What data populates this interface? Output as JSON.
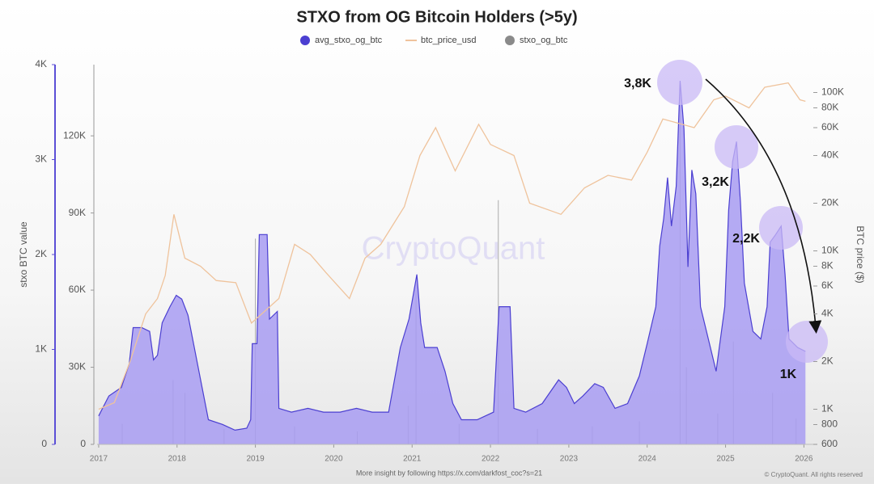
{
  "chart_data": {
    "type": "area",
    "title": "STXO from OG Bitcoin Holders (>5y)",
    "ylabel": "stxo BTC value",
    "y2label": "BTC price ($)",
    "watermark": "CryptoQuant",
    "footer": "More insight by following https://x.com/darkfost_coc?s=21",
    "copyright": "© CryptoQuant. All rights reserved",
    "annotations": [
      "3,8K",
      "3,2K",
      "2,2K",
      "1K"
    ],
    "xlim": [
      2016.98,
      2026.12
    ],
    "xticks": [
      2017,
      2018,
      2019,
      2020,
      2021,
      2022,
      2023,
      2024,
      2025,
      2026
    ],
    "ylim": [
      0,
      4000
    ],
    "yticks": [
      0,
      {
        "value": 1000,
        "label": "1K"
      },
      {
        "value": 2000,
        "label": "2K"
      },
      {
        "value": 3000,
        "label": "3K"
      },
      {
        "value": 4000,
        "label": "4K"
      }
    ],
    "y3lim": [
      0,
      147700
    ],
    "y3ticks": [
      0,
      {
        "value": 30000,
        "label": "30K"
      },
      {
        "value": 60000,
        "label": "60K"
      },
      {
        "value": 90000,
        "label": "90K"
      },
      {
        "value": 120000,
        "label": "120K"
      }
    ],
    "y2log": true,
    "y2lim": [
      600,
      150000
    ],
    "y2ticks": [
      600,
      800,
      {
        "value": 1000,
        "label": "1K"
      },
      {
        "value": 2000,
        "label": "2K"
      },
      {
        "value": 4000,
        "label": "4K"
      },
      {
        "value": 6000,
        "label": "6K"
      },
      {
        "value": 8000,
        "label": "8K"
      },
      {
        "value": 10000,
        "label": "10K"
      },
      {
        "value": 20000,
        "label": "20K"
      },
      {
        "value": 40000,
        "label": "40K"
      },
      {
        "value": 60000,
        "label": "60K"
      },
      {
        "value": 80000,
        "label": "80K"
      },
      {
        "value": 100000,
        "label": "100K"
      }
    ],
    "series": [
      {
        "name": "avg_stxo_og_btc",
        "type": "area",
        "color": "#4b3fd1",
        "fill": "#a89cf2",
        "x": [
          2017.0,
          2017.13,
          2017.29,
          2017.39,
          2017.44,
          2017.55,
          2017.65,
          2017.7,
          2017.75,
          2017.81,
          2017.91,
          2017.99,
          2018.06,
          2018.14,
          2018.22,
          2018.32,
          2018.4,
          2018.58,
          2018.74,
          2018.89,
          2018.94,
          2018.96,
          2019.02,
          2019.05,
          2019.15,
          2019.18,
          2019.28,
          2019.3,
          2019.46,
          2019.67,
          2019.87,
          2020.08,
          2020.29,
          2020.49,
          2020.7,
          2020.85,
          2020.96,
          2021.06,
          2021.11,
          2021.16,
          2021.32,
          2021.42,
          2021.52,
          2021.63,
          2021.83,
          2022.04,
          2022.11,
          2022.25,
          2022.3,
          2022.45,
          2022.66,
          2022.87,
          2022.97,
          2023.07,
          2023.18,
          2023.33,
          2023.44,
          2023.59,
          2023.75,
          2023.9,
          2024.0,
          2024.11,
          2024.16,
          2024.21,
          2024.26,
          2024.31,
          2024.37,
          2024.42,
          2024.47,
          2024.52,
          2024.57,
          2024.62,
          2024.68,
          2024.78,
          2024.88,
          2024.99,
          2025.04,
          2025.09,
          2025.14,
          2025.19,
          2025.24,
          2025.35,
          2025.45,
          2025.53,
          2025.57,
          2025.64,
          2025.71,
          2025.76,
          2025.81,
          2025.92,
          2026.02
        ],
        "values": [
          300,
          510,
          600,
          850,
          1230,
          1230,
          1190,
          890,
          940,
          1280,
          1450,
          1570,
          1530,
          1360,
          1020,
          600,
          260,
          210,
          150,
          170,
          260,
          1060,
          1060,
          2210,
          2210,
          1320,
          1400,
          380,
          340,
          380,
          340,
          340,
          380,
          340,
          340,
          1020,
          1320,
          1790,
          1280,
          1020,
          1020,
          770,
          430,
          260,
          260,
          340,
          1450,
          1450,
          380,
          340,
          430,
          680,
          600,
          430,
          510,
          640,
          600,
          380,
          430,
          720,
          1060,
          1450,
          2090,
          2380,
          2810,
          2300,
          2720,
          3830,
          3320,
          1870,
          2890,
          2640,
          1450,
          1110,
          770,
          1450,
          2470,
          2980,
          3190,
          2550,
          1700,
          1190,
          1110,
          1450,
          2130,
          2210,
          2300,
          1790,
          1110,
          1020,
          980
        ]
      },
      {
        "name": "btc_price_usd",
        "type": "line",
        "axis": "y2",
        "color": "#efc39c",
        "x": [
          2017.0,
          2017.2,
          2017.4,
          2017.6,
          2017.75,
          2017.85,
          2017.96,
          2018.1,
          2018.3,
          2018.5,
          2018.75,
          2018.95,
          2019.3,
          2019.5,
          2019.7,
          2019.9,
          2020.2,
          2020.4,
          2020.6,
          2020.9,
          2021.1,
          2021.3,
          2021.55,
          2021.85,
          2022.0,
          2022.3,
          2022.5,
          2022.9,
          2023.2,
          2023.5,
          2023.8,
          2024.0,
          2024.2,
          2024.6,
          2024.85,
          2025.0,
          2025.3,
          2025.5,
          2025.8,
          2025.95,
          2026.02
        ],
        "values": [
          1000,
          1100,
          2000,
          4000,
          5000,
          7000,
          17000,
          9000,
          8000,
          6500,
          6300,
          3500,
          5000,
          11000,
          9500,
          7300,
          5000,
          9000,
          11000,
          19000,
          40000,
          60000,
          32000,
          63000,
          47000,
          40000,
          20000,
          17000,
          25000,
          30000,
          28000,
          42000,
          68000,
          60000,
          90000,
          95000,
          80000,
          108000,
          115000,
          90000,
          88000
        ]
      },
      {
        "name": "stxo_og_btc",
        "type": "bar",
        "axis": "y3",
        "color": "#8a8a8a",
        "x": [
          2017.3,
          2017.95,
          2018.1,
          2018.6,
          2019.0,
          2019.5,
          2020.3,
          2020.95,
          2021.05,
          2021.6,
          2022.1,
          2022.6,
          2023.3,
          2023.9,
          2024.42,
          2024.5,
          2024.9,
          2025.1,
          2025.6,
          2025.9
        ],
        "values": [
          8000,
          25000,
          20000,
          6000,
          80000,
          7000,
          5000,
          15000,
          60000,
          8000,
          95000,
          6000,
          7000,
          9000,
          140000,
          30000,
          12000,
          40000,
          20000,
          10000
        ]
      }
    ]
  }
}
